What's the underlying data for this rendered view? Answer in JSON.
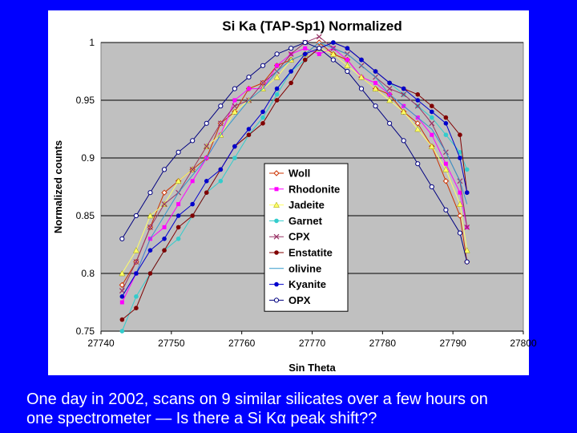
{
  "caption": {
    "line1": "One day in 2002, scans on 9 similar silicates over a few hours on",
    "line2": "one spectrometer — Is there a Si Kα peak shift??"
  },
  "colors": {
    "background": "#0000ff",
    "plot_area": "#c0c0c0",
    "gridline": "#000000"
  },
  "chart_data": {
    "type": "scatter",
    "title": "Si Ka (TAP-Sp1) Normalized",
    "xlabel": "Sin Theta",
    "ylabel": "Normalized counts",
    "xlim": [
      27740,
      27800
    ],
    "ylim": [
      0.75,
      1.0
    ],
    "xticks": [
      "27740",
      "27750",
      "27760",
      "27770",
      "27780",
      "27790",
      "27800"
    ],
    "yticks": [
      "0.75",
      "0.8",
      "0.85",
      "0.9",
      "0.95",
      "1"
    ],
    "grid": "horizontal",
    "legend_position": "center",
    "series": [
      {
        "name": "Woll",
        "color": "#cc3300",
        "marker": "open-diamond",
        "x": [
          27743,
          27745,
          27747,
          27749,
          27751,
          27753,
          27755,
          27757,
          27759,
          27761,
          27763,
          27765,
          27767,
          27769,
          27771,
          27773,
          27775,
          27777,
          27779,
          27781,
          27783,
          27785,
          27787,
          27789,
          27791,
          27792
        ],
        "y": [
          0.79,
          0.81,
          0.84,
          0.87,
          0.88,
          0.89,
          0.9,
          0.93,
          0.94,
          0.96,
          0.965,
          0.98,
          0.985,
          0.99,
          1.0,
          0.99,
          0.985,
          0.97,
          0.96,
          0.955,
          0.94,
          0.93,
          0.91,
          0.88,
          0.85,
          0.81
        ]
      },
      {
        "name": "Rhodonite",
        "color": "#ff00ff",
        "marker": "square",
        "x": [
          27743,
          27745,
          27747,
          27749,
          27751,
          27753,
          27755,
          27757,
          27759,
          27761,
          27763,
          27765,
          27767,
          27769,
          27771,
          27773,
          27775,
          27777,
          27779,
          27781,
          27783,
          27785,
          27787,
          27789,
          27791,
          27792
        ],
        "y": [
          0.775,
          0.8,
          0.83,
          0.84,
          0.86,
          0.88,
          0.9,
          0.92,
          0.95,
          0.96,
          0.96,
          0.98,
          0.99,
          0.995,
          0.99,
          0.995,
          0.985,
          0.97,
          0.965,
          0.955,
          0.945,
          0.935,
          0.92,
          0.895,
          0.87,
          0.84
        ]
      },
      {
        "name": "Jadeite",
        "color": "#ffff66",
        "marker": "triangle",
        "x": [
          27743,
          27745,
          27747,
          27749,
          27751,
          27753,
          27755,
          27757,
          27759,
          27761,
          27763,
          27765,
          27767,
          27769,
          27771,
          27773,
          27775,
          27777,
          27779,
          27781,
          27783,
          27785,
          27787,
          27789,
          27791,
          27792
        ],
        "y": [
          0.8,
          0.82,
          0.85,
          0.86,
          0.88,
          0.89,
          0.91,
          0.92,
          0.94,
          0.95,
          0.96,
          0.97,
          0.985,
          0.99,
          0.995,
          0.99,
          0.98,
          0.97,
          0.96,
          0.95,
          0.94,
          0.925,
          0.91,
          0.89,
          0.86,
          0.82
        ]
      },
      {
        "name": "Garnet",
        "color": "#33cccc",
        "marker": "circle",
        "x": [
          27743,
          27745,
          27747,
          27749,
          27751,
          27753,
          27755,
          27757,
          27759,
          27761,
          27763,
          27765,
          27767,
          27769,
          27771,
          27773,
          27775,
          27777,
          27779,
          27781,
          27783,
          27785,
          27787,
          27789,
          27791,
          27792
        ],
        "y": [
          0.75,
          0.78,
          0.8,
          0.82,
          0.83,
          0.85,
          0.87,
          0.88,
          0.9,
          0.92,
          0.935,
          0.955,
          0.975,
          0.985,
          0.995,
          1.0,
          0.995,
          0.985,
          0.975,
          0.965,
          0.955,
          0.945,
          0.935,
          0.92,
          0.905,
          0.89
        ]
      },
      {
        "name": "CPX",
        "color": "#993366",
        "marker": "x",
        "x": [
          27743,
          27745,
          27747,
          27749,
          27751,
          27753,
          27755,
          27757,
          27759,
          27761,
          27763,
          27765,
          27767,
          27769,
          27771,
          27773,
          27775,
          27777,
          27779,
          27781,
          27783,
          27785,
          27787,
          27789,
          27791,
          27792
        ],
        "y": [
          0.785,
          0.81,
          0.84,
          0.86,
          0.87,
          0.89,
          0.91,
          0.93,
          0.945,
          0.95,
          0.965,
          0.975,
          0.99,
          1.0,
          1.005,
          0.995,
          0.99,
          0.98,
          0.97,
          0.96,
          0.955,
          0.945,
          0.93,
          0.905,
          0.88,
          0.84
        ]
      },
      {
        "name": "Enstatite",
        "color": "#800000",
        "marker": "dot",
        "x": [
          27743,
          27745,
          27747,
          27749,
          27751,
          27753,
          27755,
          27757,
          27759,
          27761,
          27763,
          27765,
          27767,
          27769,
          27771,
          27773,
          27775,
          27777,
          27779,
          27781,
          27783,
          27785,
          27787,
          27789,
          27791,
          27792
        ],
        "y": [
          0.76,
          0.77,
          0.8,
          0.82,
          0.84,
          0.85,
          0.87,
          0.89,
          0.91,
          0.92,
          0.93,
          0.95,
          0.965,
          0.985,
          0.995,
          1.0,
          0.995,
          0.985,
          0.975,
          0.965,
          0.96,
          0.955,
          0.945,
          0.935,
          0.92,
          0.87
        ]
      },
      {
        "name": "olivine",
        "color": "#3399cc",
        "marker": "line",
        "x": [
          27743,
          27745,
          27747,
          27749,
          27751,
          27753,
          27755,
          27757,
          27759,
          27761,
          27763,
          27765,
          27767,
          27769,
          27771,
          27773,
          27775,
          27777,
          27779,
          27781,
          27783,
          27785,
          27787,
          27789,
          27791,
          27792
        ],
        "y": [
          0.78,
          0.8,
          0.83,
          0.85,
          0.87,
          0.885,
          0.9,
          0.92,
          0.935,
          0.95,
          0.96,
          0.975,
          0.985,
          0.99,
          1.0,
          0.995,
          0.99,
          0.98,
          0.97,
          0.955,
          0.945,
          0.935,
          0.925,
          0.905,
          0.88,
          0.86
        ]
      },
      {
        "name": "Kyanite",
        "color": "#0000cc",
        "marker": "dot",
        "x": [
          27743,
          27745,
          27747,
          27749,
          27751,
          27753,
          27755,
          27757,
          27759,
          27761,
          27763,
          27765,
          27767,
          27769,
          27771,
          27773,
          27775,
          27777,
          27779,
          27781,
          27783,
          27785,
          27787,
          27789,
          27791,
          27792
        ],
        "y": [
          0.78,
          0.8,
          0.82,
          0.83,
          0.85,
          0.86,
          0.88,
          0.89,
          0.91,
          0.925,
          0.94,
          0.96,
          0.975,
          0.99,
          0.995,
          1.0,
          0.995,
          0.985,
          0.975,
          0.965,
          0.96,
          0.95,
          0.94,
          0.93,
          0.9,
          0.87
        ]
      },
      {
        "name": "OPX",
        "color": "#000080",
        "marker": "open-circle",
        "x": [
          27743,
          27745,
          27747,
          27749,
          27751,
          27753,
          27755,
          27757,
          27759,
          27761,
          27763,
          27765,
          27767,
          27769,
          27771,
          27773,
          27775,
          27777,
          27779,
          27781,
          27783,
          27785,
          27787,
          27789,
          27791,
          27792
        ],
        "y": [
          0.83,
          0.85,
          0.87,
          0.89,
          0.905,
          0.915,
          0.93,
          0.945,
          0.96,
          0.97,
          0.98,
          0.99,
          0.995,
          1.0,
          0.995,
          0.985,
          0.975,
          0.96,
          0.945,
          0.93,
          0.915,
          0.895,
          0.875,
          0.855,
          0.835,
          0.81
        ]
      }
    ]
  }
}
